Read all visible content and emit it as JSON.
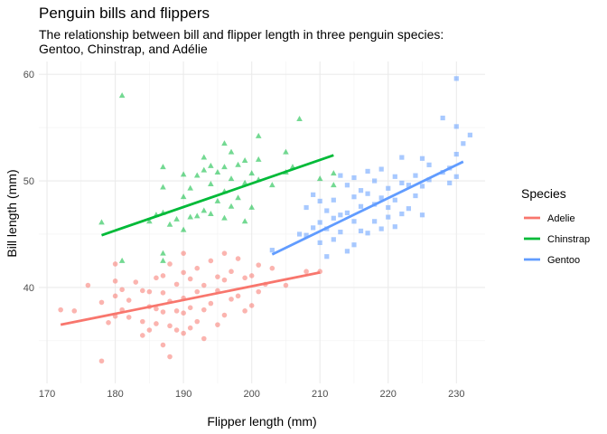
{
  "chart_data": {
    "type": "scatter",
    "title": "Penguin bills and flippers",
    "subtitle_lines": [
      "The relationship between bill and flipper length in three penguin species:",
      "Gentoo, Chinstrap, and Adélie"
    ],
    "xlabel": "Flipper length (mm)",
    "ylabel": "Bill length (mm)",
    "xlim": [
      168.8,
      234.2
    ],
    "ylim": [
      31.0,
      61.2
    ],
    "x_ticks": [
      170,
      180,
      190,
      200,
      210,
      220,
      230
    ],
    "y_ticks": [
      40,
      50,
      60
    ],
    "grid": true,
    "legend": {
      "title": "Species",
      "position": "right"
    },
    "series": [
      {
        "name": "Adelie",
        "color": "#F8766D",
        "marker": "circle",
        "fit": [
          [
            172,
            36.5
          ],
          [
            210,
            41.4
          ]
        ],
        "points": [
          [
            172,
            37.9
          ],
          [
            174,
            37.8
          ],
          [
            176,
            40.2
          ],
          [
            178,
            33.1
          ],
          [
            178,
            38.6
          ],
          [
            179,
            36.7
          ],
          [
            180,
            37.3
          ],
          [
            180,
            39.2
          ],
          [
            180,
            40.6
          ],
          [
            180,
            42.2
          ],
          [
            181,
            37.9
          ],
          [
            181,
            39.8
          ],
          [
            182,
            37.2
          ],
          [
            182,
            38.8
          ],
          [
            183,
            40.5
          ],
          [
            184,
            35.5
          ],
          [
            184,
            36.8
          ],
          [
            184,
            39.7
          ],
          [
            185,
            36.0
          ],
          [
            185,
            38.2
          ],
          [
            185,
            39.6
          ],
          [
            186,
            36.6
          ],
          [
            186,
            38.0
          ],
          [
            186,
            40.9
          ],
          [
            187,
            34.6
          ],
          [
            187,
            37.7
          ],
          [
            187,
            39.5
          ],
          [
            187,
            41.1
          ],
          [
            188,
            33.5
          ],
          [
            188,
            36.4
          ],
          [
            188,
            38.7
          ],
          [
            188,
            42.2
          ],
          [
            189,
            36.0
          ],
          [
            189,
            37.8
          ],
          [
            189,
            40.3
          ],
          [
            190,
            35.7
          ],
          [
            190,
            37.6
          ],
          [
            190,
            39.0
          ],
          [
            190,
            41.4
          ],
          [
            190,
            43.2
          ],
          [
            191,
            36.2
          ],
          [
            191,
            38.1
          ],
          [
            191,
            40.8
          ],
          [
            192,
            36.8
          ],
          [
            192,
            39.6
          ],
          [
            192,
            41.8
          ],
          [
            193,
            35.2
          ],
          [
            193,
            37.9
          ],
          [
            193,
            40.2
          ],
          [
            194,
            38.5
          ],
          [
            194,
            42.5
          ],
          [
            195,
            36.5
          ],
          [
            195,
            39.7
          ],
          [
            195,
            41.0
          ],
          [
            196,
            37.4
          ],
          [
            196,
            40.7
          ],
          [
            196,
            43.2
          ],
          [
            197,
            38.9
          ],
          [
            197,
            41.5
          ],
          [
            198,
            39.2
          ],
          [
            198,
            42.7
          ],
          [
            199,
            37.8
          ],
          [
            199,
            40.9
          ],
          [
            200,
            38.3
          ],
          [
            200,
            41.1
          ],
          [
            201,
            39.6
          ],
          [
            201,
            42.1
          ],
          [
            202,
            40.3
          ],
          [
            203,
            41.8
          ],
          [
            205,
            40.2
          ],
          [
            208,
            41.5
          ],
          [
            210,
            41.5
          ]
        ]
      },
      {
        "name": "Chinstrap",
        "color": "#00BA38",
        "marker": "triangle",
        "fit": [
          [
            178,
            44.9
          ],
          [
            212,
            52.4
          ]
        ],
        "points": [
          [
            178,
            46.1
          ],
          [
            181,
            42.5
          ],
          [
            181,
            58.0
          ],
          [
            185,
            46.2
          ],
          [
            186,
            46.8
          ],
          [
            187,
            42.5
          ],
          [
            187,
            43.2
          ],
          [
            187,
            47.0
          ],
          [
            187,
            49.4
          ],
          [
            187,
            51.3
          ],
          [
            188,
            45.9
          ],
          [
            189,
            46.4
          ],
          [
            190,
            45.4
          ],
          [
            190,
            48.5
          ],
          [
            190,
            50.6
          ],
          [
            191,
            46.6
          ],
          [
            191,
            49.3
          ],
          [
            192,
            46.7
          ],
          [
            192,
            50.5
          ],
          [
            193,
            47.2
          ],
          [
            193,
            51.0
          ],
          [
            193,
            52.2
          ],
          [
            194,
            46.9
          ],
          [
            194,
            49.7
          ],
          [
            194,
            51.4
          ],
          [
            195,
            48.1
          ],
          [
            195,
            50.8
          ],
          [
            196,
            46.5
          ],
          [
            196,
            49.0
          ],
          [
            196,
            51.3
          ],
          [
            196,
            53.5
          ],
          [
            197,
            47.6
          ],
          [
            197,
            50.2
          ],
          [
            197,
            52.7
          ],
          [
            198,
            48.4
          ],
          [
            198,
            51.5
          ],
          [
            199,
            46.2
          ],
          [
            199,
            49.8
          ],
          [
            199,
            51.9
          ],
          [
            200,
            47.5
          ],
          [
            200,
            50.7
          ],
          [
            201,
            50.1
          ],
          [
            201,
            52.0
          ],
          [
            201,
            54.2
          ],
          [
            203,
            49.6
          ],
          [
            205,
            50.8
          ],
          [
            205,
            52.7
          ],
          [
            206,
            51.3
          ],
          [
            207,
            55.8
          ],
          [
            210,
            50.2
          ],
          [
            212,
            50.7
          ],
          [
            212,
            49.6
          ]
        ]
      },
      {
        "name": "Gentoo",
        "color": "#619CFF",
        "marker": "square",
        "fit": [
          [
            203,
            43.1
          ],
          [
            231,
            51.8
          ]
        ],
        "points": [
          [
            203,
            43.5
          ],
          [
            207,
            45.0
          ],
          [
            208,
            44.9
          ],
          [
            208,
            47.5
          ],
          [
            209,
            45.6
          ],
          [
            209,
            48.7
          ],
          [
            210,
            44.2
          ],
          [
            210,
            46.1
          ],
          [
            210,
            48.1
          ],
          [
            211,
            42.9
          ],
          [
            211,
            45.5
          ],
          [
            211,
            47.2
          ],
          [
            212,
            44.5
          ],
          [
            212,
            46.5
          ],
          [
            212,
            48.2
          ],
          [
            213,
            45.2
          ],
          [
            213,
            46.8
          ],
          [
            213,
            50.5
          ],
          [
            214,
            43.4
          ],
          [
            214,
            47.0
          ],
          [
            214,
            49.6
          ],
          [
            215,
            44.0
          ],
          [
            215,
            46.2
          ],
          [
            215,
            48.5
          ],
          [
            215,
            50.3
          ],
          [
            216,
            45.3
          ],
          [
            216,
            47.6
          ],
          [
            216,
            49.1
          ],
          [
            217,
            45.1
          ],
          [
            217,
            48.8
          ],
          [
            217,
            50.9
          ],
          [
            218,
            46.2
          ],
          [
            218,
            47.8
          ],
          [
            218,
            50.0
          ],
          [
            219,
            45.5
          ],
          [
            219,
            48.4
          ],
          [
            219,
            51.1
          ],
          [
            220,
            46.6
          ],
          [
            220,
            47.5
          ],
          [
            220,
            49.3
          ],
          [
            221,
            45.7
          ],
          [
            221,
            48.2
          ],
          [
            221,
            50.4
          ],
          [
            222,
            46.9
          ],
          [
            222,
            49.8
          ],
          [
            222,
            52.2
          ],
          [
            223,
            47.4
          ],
          [
            223,
            49.6
          ],
          [
            224,
            48.6
          ],
          [
            224,
            50.5
          ],
          [
            225,
            46.8
          ],
          [
            225,
            49.5
          ],
          [
            225,
            52.1
          ],
          [
            226,
            50.1
          ],
          [
            226,
            51.5
          ],
          [
            228,
            50.8
          ],
          [
            228,
            55.9
          ],
          [
            229,
            49.8
          ],
          [
            229,
            51.2
          ],
          [
            230,
            50.4
          ],
          [
            230,
            52.5
          ],
          [
            230,
            55.1
          ],
          [
            230,
            59.6
          ],
          [
            231,
            53.5
          ],
          [
            232,
            54.3
          ]
        ]
      }
    ]
  }
}
